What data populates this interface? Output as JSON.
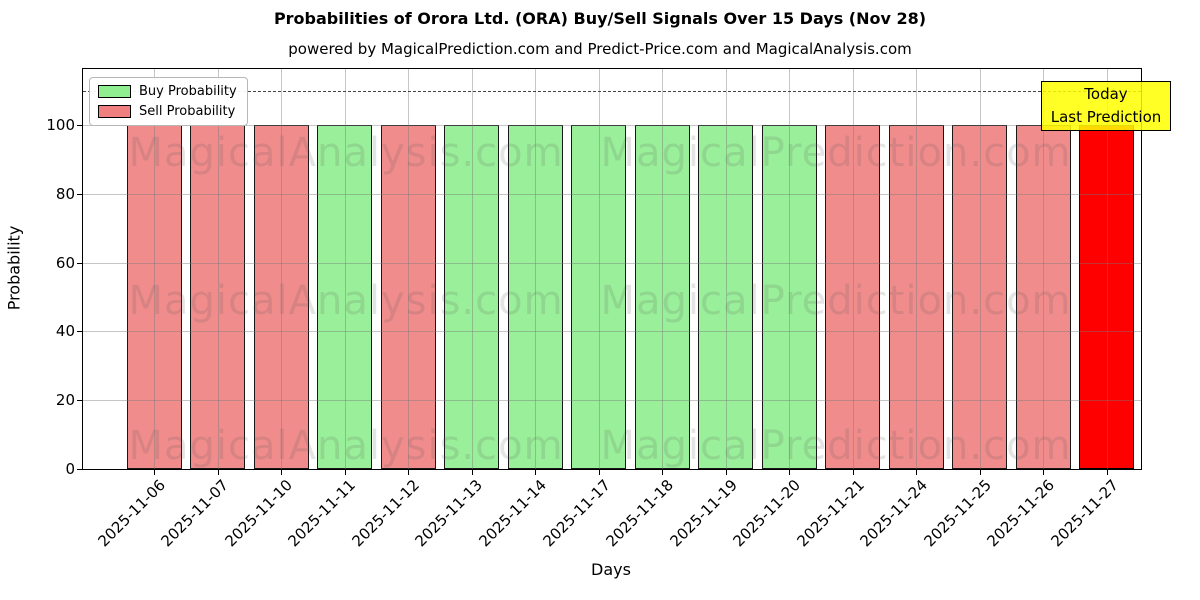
{
  "title": "Probabilities of Orora Ltd. (ORA) Buy/Sell Signals Over 15 Days (Nov 28)",
  "subtitle": "powered by MagicalPrediction.com and Predict-Price.com and MagicalAnalysis.com",
  "legend": [
    {
      "label": "Buy Probability",
      "color": "#90EE90"
    },
    {
      "label": "Sell Probability",
      "color": "#F08080"
    }
  ],
  "annotation": {
    "lines": [
      "Today",
      "Last Prediction"
    ],
    "bg_color": "#FFFF00"
  },
  "chart_data": {
    "type": "bar",
    "title": "Probabilities of Orora Ltd. (ORA) Buy/Sell Signals Over 15 Days (Nov 28)",
    "xlabel": "Days",
    "ylabel": "Probability",
    "categories": [
      "2025-11-06",
      "2025-11-07",
      "2025-11-10",
      "2025-11-11",
      "2025-11-12",
      "2025-11-13",
      "2025-11-14",
      "2025-11-17",
      "2025-11-18",
      "2025-11-19",
      "2025-11-20",
      "2025-11-21",
      "2025-11-24",
      "2025-11-25",
      "2025-11-26",
      "2025-11-27"
    ],
    "values": [
      100,
      100,
      100,
      100,
      100,
      100,
      100,
      100,
      100,
      100,
      100,
      100,
      100,
      100,
      100,
      100
    ],
    "signals": [
      "sell",
      "sell",
      "sell",
      "buy",
      "sell",
      "buy",
      "buy",
      "buy",
      "buy",
      "buy",
      "buy",
      "sell",
      "sell",
      "sell",
      "sell",
      "last_prediction"
    ],
    "signal_colors": {
      "buy": "#90EE90",
      "sell": "#F08080",
      "last_prediction": "#FF0000"
    },
    "ylim": [
      0,
      116
    ],
    "yticks": [
      0,
      20,
      40,
      60,
      80,
      100
    ],
    "dashed_line_y": 110,
    "grid": true,
    "legend_position": "upper left",
    "watermarks": [
      "MagicalAnalysis.com",
      "MagicalPrediction.com"
    ]
  }
}
